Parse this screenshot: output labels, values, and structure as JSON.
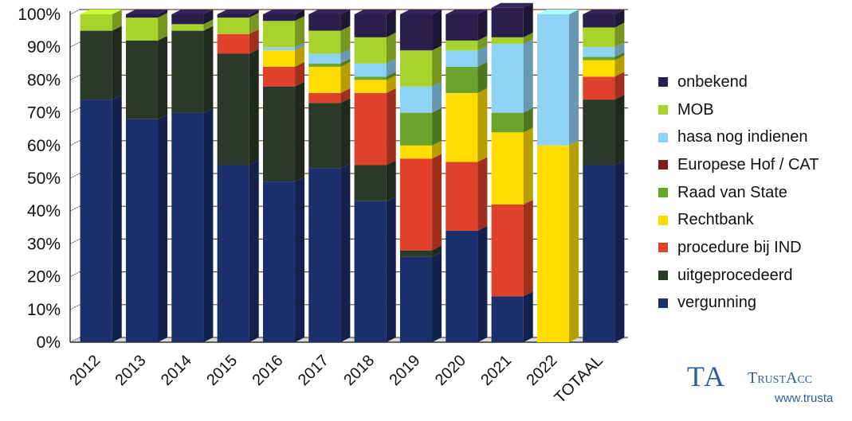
{
  "chart_data": {
    "type": "bar",
    "stacked": true,
    "normalized": true,
    "title": "",
    "xlabel": "",
    "ylabel": "",
    "ylim": [
      0,
      100
    ],
    "y_tick_labels": [
      "0%",
      "10%",
      "20%",
      "30%",
      "40%",
      "50%",
      "60%",
      "70%",
      "80%",
      "90%",
      "100%"
    ],
    "grid": "horizontal",
    "legend_position": "right",
    "categories": [
      "2012",
      "2013",
      "2014",
      "2015",
      "2016",
      "2017",
      "2018",
      "2019",
      "2020",
      "2021",
      "2022",
      "TOTAAL"
    ],
    "series": [
      {
        "name": "vergunning",
        "color": "#1a2f6b",
        "values": [
          74,
          68,
          70,
          54,
          49,
          53,
          43,
          26,
          34,
          14,
          0,
          54
        ]
      },
      {
        "name": "uitgeprocedeerd",
        "color": "#2b3a28",
        "values": [
          21,
          24,
          25,
          34,
          29,
          20,
          11,
          2,
          0,
          0,
          0,
          20
        ]
      },
      {
        "name": "procedure bij IND",
        "color": "#e0412a",
        "values": [
          0,
          0,
          0,
          6,
          6,
          3,
          22,
          28,
          21,
          28,
          0,
          7
        ]
      },
      {
        "name": "Rechtbank",
        "color": "#ffdd00",
        "values": [
          0,
          0,
          0,
          0,
          5,
          8,
          4,
          4,
          21,
          22,
          60,
          5
        ]
      },
      {
        "name": "Raad van State",
        "color": "#6ba42d",
        "values": [
          0,
          0,
          0,
          0,
          0,
          1,
          1,
          10,
          8,
          6,
          0,
          1
        ]
      },
      {
        "name": "Europese Hof / CAT",
        "color": "#7a1f1f",
        "values": [
          0,
          0,
          0,
          0,
          0,
          0,
          0,
          0,
          0,
          0,
          0,
          0
        ]
      },
      {
        "name": "hasa nog indienen",
        "color": "#8fd3f4",
        "values": [
          0,
          0,
          0,
          0,
          1,
          3,
          4,
          8,
          5,
          21,
          40,
          3
        ]
      },
      {
        "name": "MOB",
        "color": "#a8d22c",
        "values": [
          5,
          7,
          2,
          5,
          8,
          7,
          8,
          11,
          3,
          2,
          0,
          6
        ]
      },
      {
        "name": "onbekend",
        "color": "#2a1f4a",
        "values": [
          0,
          1,
          3,
          1,
          2,
          5,
          7,
          11,
          8,
          9,
          0,
          4
        ]
      }
    ]
  },
  "legend": {
    "items": [
      {
        "label": "onbekend",
        "color": "#2a1f4a"
      },
      {
        "label": "MOB",
        "color": "#a8d22c"
      },
      {
        "label": "hasa nog indienen",
        "color": "#8fd3f4"
      },
      {
        "label": "Europese Hof / CAT",
        "color": "#7a1f1f"
      },
      {
        "label": "Raad van State",
        "color": "#6ba42d"
      },
      {
        "label": "Rechtbank",
        "color": "#ffdd00"
      },
      {
        "label": "procedure bij IND",
        "color": "#e0412a"
      },
      {
        "label": "uitgeprocedeerd",
        "color": "#2b3a28"
      },
      {
        "label": "vergunning",
        "color": "#1a2f6b"
      }
    ]
  },
  "logo": {
    "mark": "TA",
    "name": "TrustAcc",
    "url": "www.trusta"
  }
}
